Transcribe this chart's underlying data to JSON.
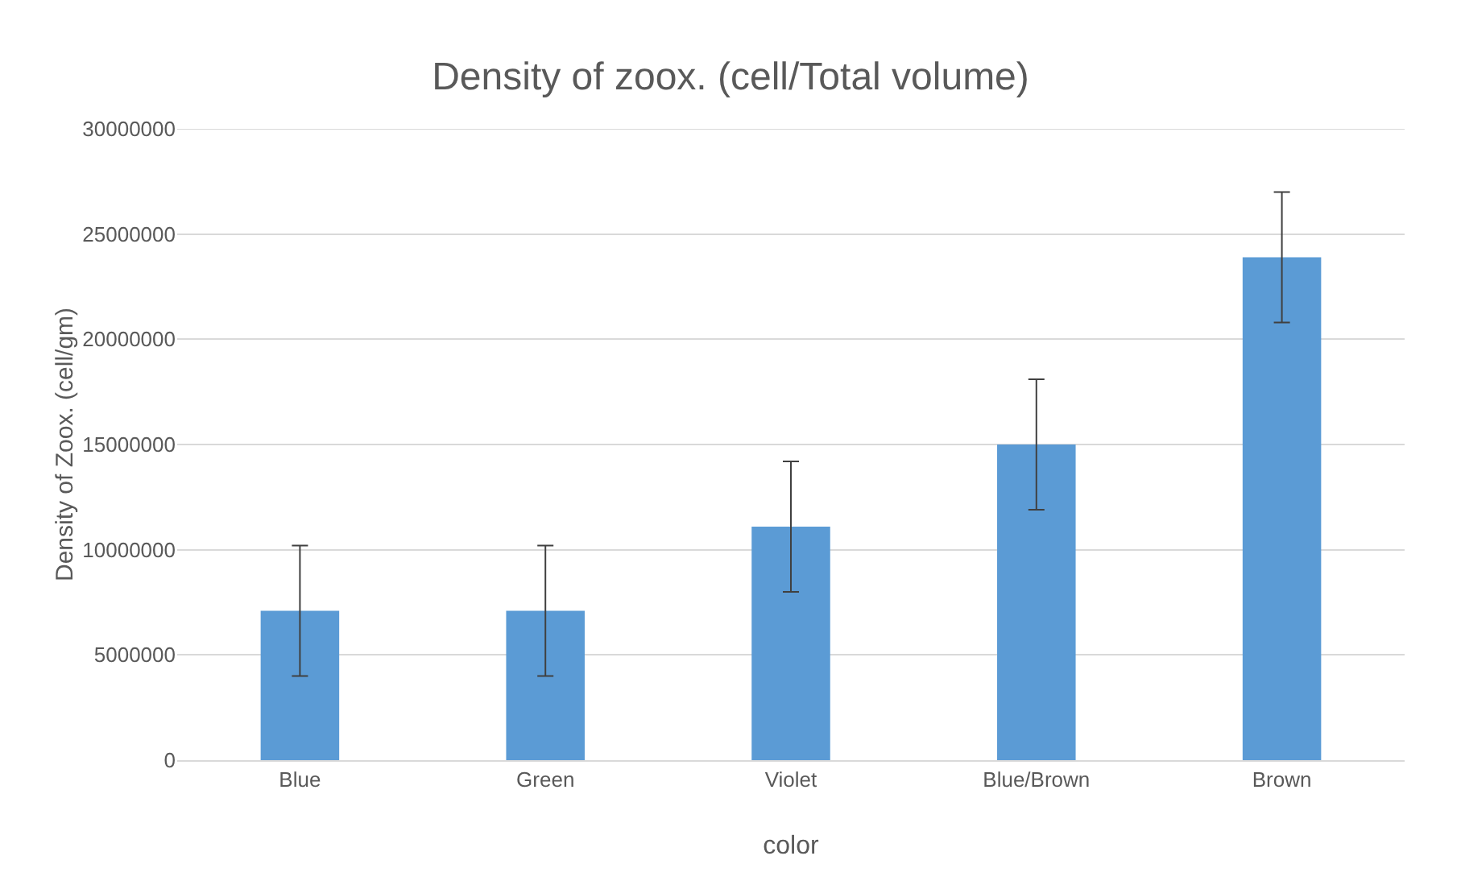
{
  "chart_data": {
    "type": "bar",
    "title": "Density of zoox. (cell/Total volume)",
    "xlabel": "color",
    "ylabel": "Density of Zoox. (cell/gm)",
    "categories": [
      "Blue",
      "Green",
      "Violet",
      "Blue/Brown",
      "Brown"
    ],
    "values": [
      7100000,
      7100000,
      11100000,
      15000000,
      23900000
    ],
    "errors": [
      3100000,
      3100000,
      3100000,
      3100000,
      3100000
    ],
    "color": "#5b9bd5",
    "ylim": [
      0,
      30000000
    ],
    "yticks": [
      0,
      5000000,
      10000000,
      15000000,
      20000000,
      25000000,
      30000000
    ],
    "grid": "y"
  }
}
